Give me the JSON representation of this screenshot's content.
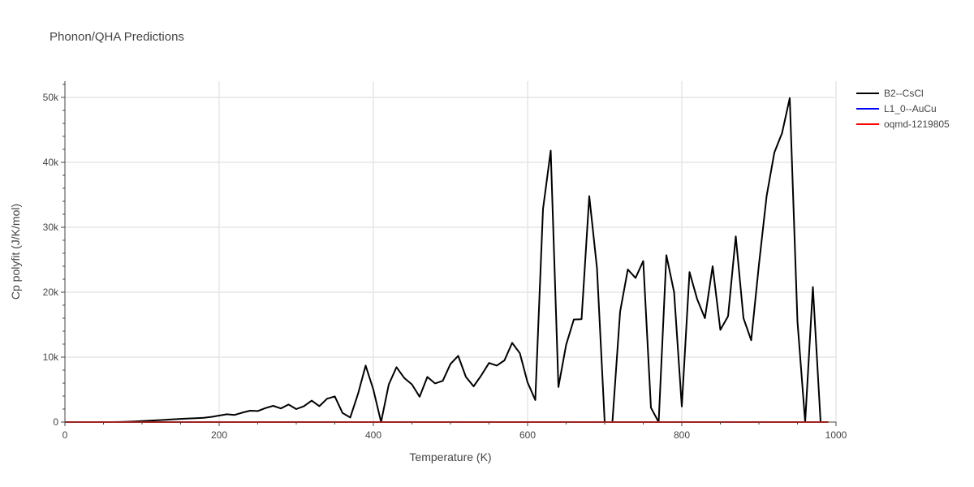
{
  "chart_data": {
    "type": "line",
    "title": "Phonon/QHA Predictions",
    "xlabel": "Temperature (K)",
    "ylabel": "Cp polyfit (J/K/mol)",
    "xlim": [
      0,
      1000
    ],
    "ylim": [
      0,
      52500
    ],
    "x_ticks": [
      0,
      200,
      400,
      600,
      800,
      1000
    ],
    "x_tick_labels": [
      "0",
      "200",
      "400",
      "600",
      "800",
      "1000"
    ],
    "y_ticks": [
      0,
      10000,
      20000,
      30000,
      40000,
      50000
    ],
    "y_tick_labels": [
      "0",
      "10k",
      "20k",
      "30k",
      "40k",
      "50k"
    ],
    "grid": true,
    "legend_position": "top-right",
    "series": [
      {
        "name": "B2--CsCl",
        "color": "#000000",
        "x": [
          0,
          10,
          20,
          30,
          40,
          50,
          60,
          70,
          80,
          90,
          100,
          110,
          120,
          130,
          140,
          150,
          160,
          170,
          180,
          190,
          200,
          210,
          220,
          230,
          240,
          250,
          260,
          270,
          280,
          290,
          300,
          310,
          320,
          330,
          340,
          350,
          360,
          370,
          380,
          390,
          400,
          410,
          420,
          430,
          440,
          450,
          460,
          470,
          480,
          490,
          500,
          510,
          520,
          530,
          540,
          550,
          560,
          570,
          580,
          590,
          600,
          610,
          620,
          630,
          640,
          650,
          660,
          670,
          680,
          690,
          700,
          710,
          720,
          730,
          740,
          750,
          760,
          770,
          780,
          790,
          800,
          810,
          820,
          830,
          840,
          850,
          860,
          870,
          880,
          890,
          900,
          910,
          920,
          930,
          940,
          950,
          960,
          970,
          980,
          990
        ],
        "y": [
          0,
          0,
          0,
          0,
          0,
          0,
          0,
          20,
          50,
          100,
          150,
          220,
          280,
          350,
          420,
          480,
          540,
          600,
          650,
          800,
          1000,
          1200,
          1100,
          1450,
          1750,
          1700,
          2150,
          2500,
          2100,
          2700,
          2000,
          2450,
          3300,
          2450,
          3600,
          3950,
          1400,
          700,
          4300,
          8700,
          5000,
          0,
          5800,
          8450,
          6800,
          5800,
          3900,
          6950,
          5950,
          6350,
          8950,
          10200,
          6950,
          5500,
          7200,
          9100,
          8700,
          9500,
          12200,
          10600,
          6100,
          3400,
          32800,
          41800,
          5400,
          11900,
          15800,
          15850,
          34800,
          23700,
          0,
          0,
          17000,
          23500,
          22200,
          24800,
          2200,
          0,
          25700,
          20000,
          2400,
          23100,
          18900,
          16000,
          24000,
          14200,
          16300,
          28600,
          16000,
          12600,
          24200,
          34800,
          41500,
          44500,
          49900,
          15500,
          0,
          20800,
          0,
          0
        ]
      },
      {
        "name": "L1_0--AuCu",
        "color": "#0000ff",
        "x": [
          0,
          990
        ],
        "y": [
          0,
          0
        ]
      },
      {
        "name": "oqmd-1219805",
        "color": "#ff0000",
        "x": [
          0,
          990
        ],
        "y": [
          0,
          0
        ]
      }
    ]
  }
}
